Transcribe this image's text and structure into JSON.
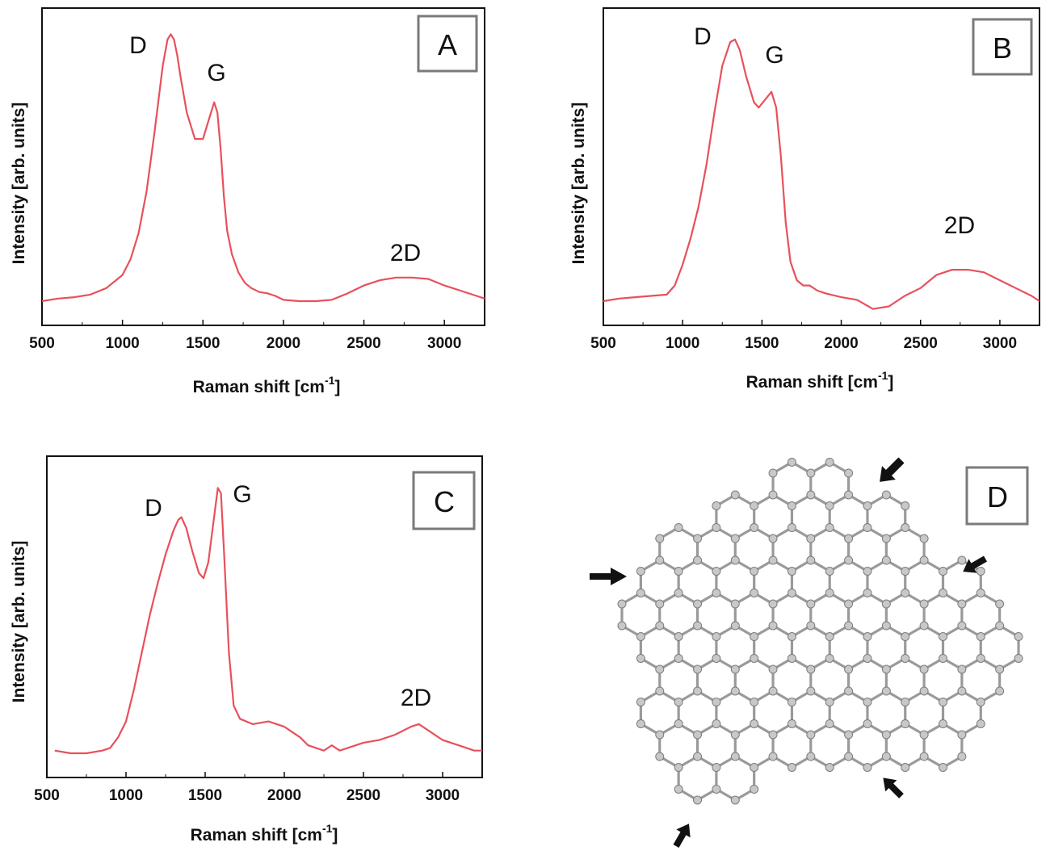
{
  "panels": [
    {
      "letter": "A",
      "xlabel": "Raman shift [cm",
      "xlabel_sup": "-1",
      "xlabel_end": "]",
      "ylabel": "Intensity [arb. units]",
      "peak_labels": [
        "D",
        "G",
        "2D"
      ]
    },
    {
      "letter": "B",
      "xlabel": "Raman shift [cm",
      "xlabel_sup": "-1",
      "xlabel_end": "]",
      "ylabel": "Intensity [arb. units]",
      "peak_labels": [
        "D",
        "G",
        "2D"
      ]
    },
    {
      "letter": "C",
      "xlabel": "Raman shift [cm",
      "xlabel_sup": "-1",
      "xlabel_end": "]",
      "ylabel": "Intensity [arb. units]",
      "peak_labels": [
        "D",
        "G",
        "2D"
      ]
    }
  ],
  "panel_d": {
    "letter": "D"
  },
  "colors": {
    "spectrum": "#e8505b",
    "axis": "#111111",
    "box": "#7a7a7a",
    "atom": "#c8c8c8",
    "bond": "#9a9a9a"
  },
  "chart_data": [
    {
      "type": "line",
      "title": "",
      "xlabel": "Raman shift [cm-1]",
      "ylabel": "Intensity [arb. units]",
      "xlim": [
        500,
        3250
      ],
      "ylim": [
        0,
        1.12
      ],
      "xticks": [
        500,
        1000,
        1500,
        2000,
        2500,
        3000
      ],
      "series": [
        {
          "x": [
            500,
            600,
            700,
            800,
            900,
            1000,
            1050,
            1100,
            1150,
            1200,
            1250,
            1280,
            1300,
            1320,
            1340,
            1360,
            1400,
            1450,
            1500,
            1540,
            1570,
            1590,
            1610,
            1630,
            1650,
            1680,
            1720,
            1760,
            1800,
            1850,
            1900,
            1950,
            2000,
            2100,
            2200,
            2300,
            2400,
            2500,
            2600,
            2700,
            2800,
            2900,
            3000,
            3100,
            3200,
            3250
          ],
          "y": [
            0.0,
            0.01,
            0.015,
            0.025,
            0.05,
            0.1,
            0.16,
            0.26,
            0.42,
            0.65,
            0.9,
            1.0,
            1.02,
            1.0,
            0.94,
            0.86,
            0.72,
            0.62,
            0.62,
            0.7,
            0.76,
            0.72,
            0.58,
            0.4,
            0.27,
            0.18,
            0.11,
            0.07,
            0.05,
            0.035,
            0.03,
            0.02,
            0.005,
            0.0,
            0.0,
            0.005,
            0.03,
            0.06,
            0.08,
            0.09,
            0.09,
            0.085,
            0.06,
            0.04,
            0.02,
            0.01
          ]
        }
      ]
    },
    {
      "type": "line",
      "title": "",
      "xlabel": "Raman shift [cm-1]",
      "ylabel": "Intensity [arb. units]",
      "xlim": [
        500,
        3250
      ],
      "ylim": [
        0,
        1.12
      ],
      "xticks": [
        500,
        1000,
        1500,
        2000,
        2500,
        3000
      ],
      "series": [
        {
          "x": [
            500,
            600,
            700,
            800,
            900,
            950,
            1000,
            1050,
            1100,
            1150,
            1200,
            1250,
            1300,
            1330,
            1360,
            1400,
            1450,
            1480,
            1520,
            1560,
            1590,
            1620,
            1650,
            1680,
            1720,
            1760,
            1800,
            1850,
            1900,
            2000,
            2100,
            2200,
            2300,
            2400,
            2500,
            2600,
            2700,
            2800,
            2900,
            3000,
            3100,
            3200,
            3250
          ],
          "y": [
            0.0,
            0.01,
            0.015,
            0.02,
            0.025,
            0.06,
            0.14,
            0.24,
            0.36,
            0.52,
            0.72,
            0.9,
            0.99,
            1.0,
            0.96,
            0.86,
            0.76,
            0.74,
            0.77,
            0.8,
            0.74,
            0.55,
            0.3,
            0.15,
            0.08,
            0.06,
            0.06,
            0.04,
            0.03,
            0.015,
            0.005,
            -0.03,
            -0.02,
            0.02,
            0.05,
            0.1,
            0.12,
            0.12,
            0.11,
            0.08,
            0.05,
            0.02,
            0.0
          ]
        }
      ]
    },
    {
      "type": "line",
      "title": "",
      "xlabel": "Raman shift [cm-1]",
      "ylabel": "Intensity [arb. units]",
      "xlim": [
        500,
        3250
      ],
      "ylim": [
        0,
        1.12
      ],
      "xticks": [
        500,
        1000,
        1500,
        2000,
        2500,
        3000
      ],
      "series": [
        {
          "x": [
            550,
            650,
            750,
            850,
            900,
            950,
            1000,
            1050,
            1100,
            1150,
            1200,
            1250,
            1300,
            1330,
            1350,
            1380,
            1420,
            1460,
            1490,
            1520,
            1550,
            1580,
            1600,
            1620,
            1650,
            1680,
            1720,
            1800,
            1900,
            2000,
            2050,
            2100,
            2150,
            2200,
            2250,
            2300,
            2350,
            2400,
            2500,
            2600,
            2700,
            2800,
            2850,
            2900,
            3000,
            3100,
            3200,
            3250
          ],
          "y": [
            0.01,
            0.0,
            0.0,
            0.01,
            0.02,
            0.06,
            0.12,
            0.24,
            0.38,
            0.52,
            0.64,
            0.75,
            0.84,
            0.88,
            0.89,
            0.85,
            0.76,
            0.68,
            0.66,
            0.72,
            0.86,
            1.0,
            0.98,
            0.75,
            0.38,
            0.18,
            0.13,
            0.11,
            0.12,
            0.1,
            0.08,
            0.06,
            0.03,
            0.02,
            0.01,
            0.03,
            0.01,
            0.02,
            0.04,
            0.05,
            0.07,
            0.1,
            0.11,
            0.09,
            0.05,
            0.03,
            0.01,
            0.01
          ]
        }
      ]
    }
  ]
}
